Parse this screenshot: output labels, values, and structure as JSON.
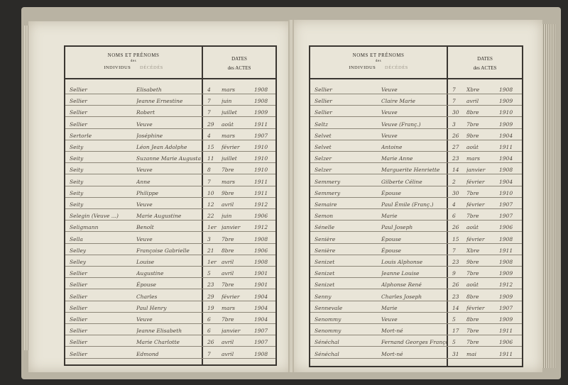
{
  "header": {
    "names_title": "NOMS ET PRÉNOMS",
    "names_des": "des",
    "names_individus": "INDIVIDUS",
    "names_decedes": "DÉCÉDÉS",
    "dates_title": "DATES",
    "dates_sub": "des ACTES"
  },
  "colors": {
    "paper": "#e9e5d8",
    "ink": "#4b443b",
    "rule": "#3a3631",
    "background": "#2b2a28"
  },
  "left_page": {
    "rows": [
      {
        "surname": "Sellier",
        "given": "Elisabeth",
        "day": "4",
        "month": "mars",
        "year": "1908"
      },
      {
        "surname": "Sellier",
        "given": "Jeanne Ernestine",
        "day": "7",
        "month": "juin",
        "year": "1908"
      },
      {
        "surname": "Sellier",
        "given": "Robert",
        "day": "7",
        "month": "juillet",
        "year": "1909"
      },
      {
        "surname": "Sellier",
        "given": "Veuve",
        "day": "29",
        "month": "août",
        "year": "1911"
      },
      {
        "surname": "Sertorle",
        "given": "Joséphine",
        "day": "4",
        "month": "mars",
        "year": "1907"
      },
      {
        "surname": "Seity",
        "given": "Léon Jean Adolphe",
        "day": "15",
        "month": "février",
        "year": "1910"
      },
      {
        "surname": "Seity",
        "given": "Suzanne Marie Augusta",
        "day": "11",
        "month": "juillet",
        "year": "1910"
      },
      {
        "surname": "Seity",
        "given": "Veuve",
        "day": "8",
        "month": "7bre",
        "year": "1910"
      },
      {
        "surname": "Seity",
        "given": "Anne",
        "day": "7",
        "month": "mars",
        "year": "1911"
      },
      {
        "surname": "Seity",
        "given": "Philippe",
        "day": "10",
        "month": "9bre",
        "year": "1911"
      },
      {
        "surname": "Seity",
        "given": "Veuve",
        "day": "12",
        "month": "avril",
        "year": "1912"
      },
      {
        "surname": "Selegin (Veuve ...)",
        "given": "Marie Augustine",
        "day": "22",
        "month": "juin",
        "year": "1906"
      },
      {
        "surname": "Seligmann",
        "given": "Benoît",
        "day": "1er",
        "month": "janvier",
        "year": "1912"
      },
      {
        "surname": "Sella",
        "given": "Veuve",
        "day": "3",
        "month": "7bre",
        "year": "1908"
      },
      {
        "surname": "Selley",
        "given": "Françoise Gabrielle",
        "day": "21",
        "month": "8bre",
        "year": "1906"
      },
      {
        "surname": "Selley",
        "given": "Louise",
        "day": "1er",
        "month": "avril",
        "year": "1908"
      },
      {
        "surname": "Sellier",
        "given": "Augustine",
        "day": "5",
        "month": "avril",
        "year": "1901"
      },
      {
        "surname": "Sellier",
        "given": "Épouse",
        "day": "23",
        "month": "7bre",
        "year": "1901"
      },
      {
        "surname": "Sellier",
        "given": "Charles",
        "day": "29",
        "month": "février",
        "year": "1904"
      },
      {
        "surname": "Sellier",
        "given": "Paul Henry",
        "day": "19",
        "month": "mars",
        "year": "1904"
      },
      {
        "surname": "Sellier",
        "given": "Veuve",
        "day": "6",
        "month": "7bre",
        "year": "1904"
      },
      {
        "surname": "Sellier",
        "given": "Jeanne Elisabeth",
        "day": "6",
        "month": "janvier",
        "year": "1907"
      },
      {
        "surname": "Sellier",
        "given": "Marie Charlotte",
        "day": "26",
        "month": "avril",
        "year": "1907"
      },
      {
        "surname": "Sellier",
        "given": "Edmond",
        "day": "7",
        "month": "avril",
        "year": "1908"
      }
    ]
  },
  "right_page": {
    "rows": [
      {
        "surname": "Sellier",
        "given": "Veuve",
        "day": "7",
        "month": "Xbre",
        "year": "1908"
      },
      {
        "surname": "Sellier",
        "given": "Claire Marie",
        "day": "7",
        "month": "avril",
        "year": "1909"
      },
      {
        "surname": "Sellier",
        "given": "Veuve",
        "day": "30",
        "month": "8bre",
        "year": "1910"
      },
      {
        "surname": "Seltz",
        "given": "Veuve (Franç.)",
        "day": "3",
        "month": "7bre",
        "year": "1909"
      },
      {
        "surname": "Selvet",
        "given": "Veuve",
        "day": "26",
        "month": "9bre",
        "year": "1904"
      },
      {
        "surname": "Selvet",
        "given": "Antoine",
        "day": "27",
        "month": "août",
        "year": "1911"
      },
      {
        "surname": "Selzer",
        "given": "Marie Anne",
        "day": "23",
        "month": "mars",
        "year": "1904"
      },
      {
        "surname": "Selzer",
        "given": "Marguerite Henriette",
        "day": "14",
        "month": "janvier",
        "year": "1908"
      },
      {
        "surname": "Semmery",
        "given": "Gilberte Céline",
        "day": "2",
        "month": "février",
        "year": "1904"
      },
      {
        "surname": "Semmery",
        "given": "Épouse",
        "day": "30",
        "month": "7bre",
        "year": "1910"
      },
      {
        "surname": "Semaire",
        "given": "Paul Émile (Franç.)",
        "day": "4",
        "month": "février",
        "year": "1907"
      },
      {
        "surname": "Semon",
        "given": "Marie",
        "day": "6",
        "month": "7bre",
        "year": "1907"
      },
      {
        "surname": "Sénelle",
        "given": "Paul Joseph",
        "day": "26",
        "month": "août",
        "year": "1906"
      },
      {
        "surname": "Senière",
        "given": "Épouse",
        "day": "15",
        "month": "février",
        "year": "1908"
      },
      {
        "surname": "Senière",
        "given": "Épouse",
        "day": "7",
        "month": "Xbre",
        "year": "1911"
      },
      {
        "surname": "Senizet",
        "given": "Louis Alphonse",
        "day": "23",
        "month": "9bre",
        "year": "1908"
      },
      {
        "surname": "Senizet",
        "given": "Jeanne Louise",
        "day": "9",
        "month": "7bre",
        "year": "1909"
      },
      {
        "surname": "Senizet",
        "given": "Alphonse René",
        "day": "26",
        "month": "août",
        "year": "1912"
      },
      {
        "surname": "Senny",
        "given": "Charles Joseph",
        "day": "23",
        "month": "8bre",
        "year": "1909"
      },
      {
        "surname": "Sennevale",
        "given": "Marie",
        "day": "14",
        "month": "février",
        "year": "1907"
      },
      {
        "surname": "Senommy",
        "given": "Veuve",
        "day": "5",
        "month": "8bre",
        "year": "1909"
      },
      {
        "surname": "Senommy",
        "given": "Mort-né",
        "day": "17",
        "month": "7bre",
        "year": "1911"
      },
      {
        "surname": "Sénéchal",
        "given": "Fernand Georges François",
        "day": "5",
        "month": "7bre",
        "year": "1906"
      },
      {
        "surname": "Sénéchal",
        "given": "Mort-né",
        "day": "31",
        "month": "mai",
        "year": "1911"
      }
    ]
  }
}
